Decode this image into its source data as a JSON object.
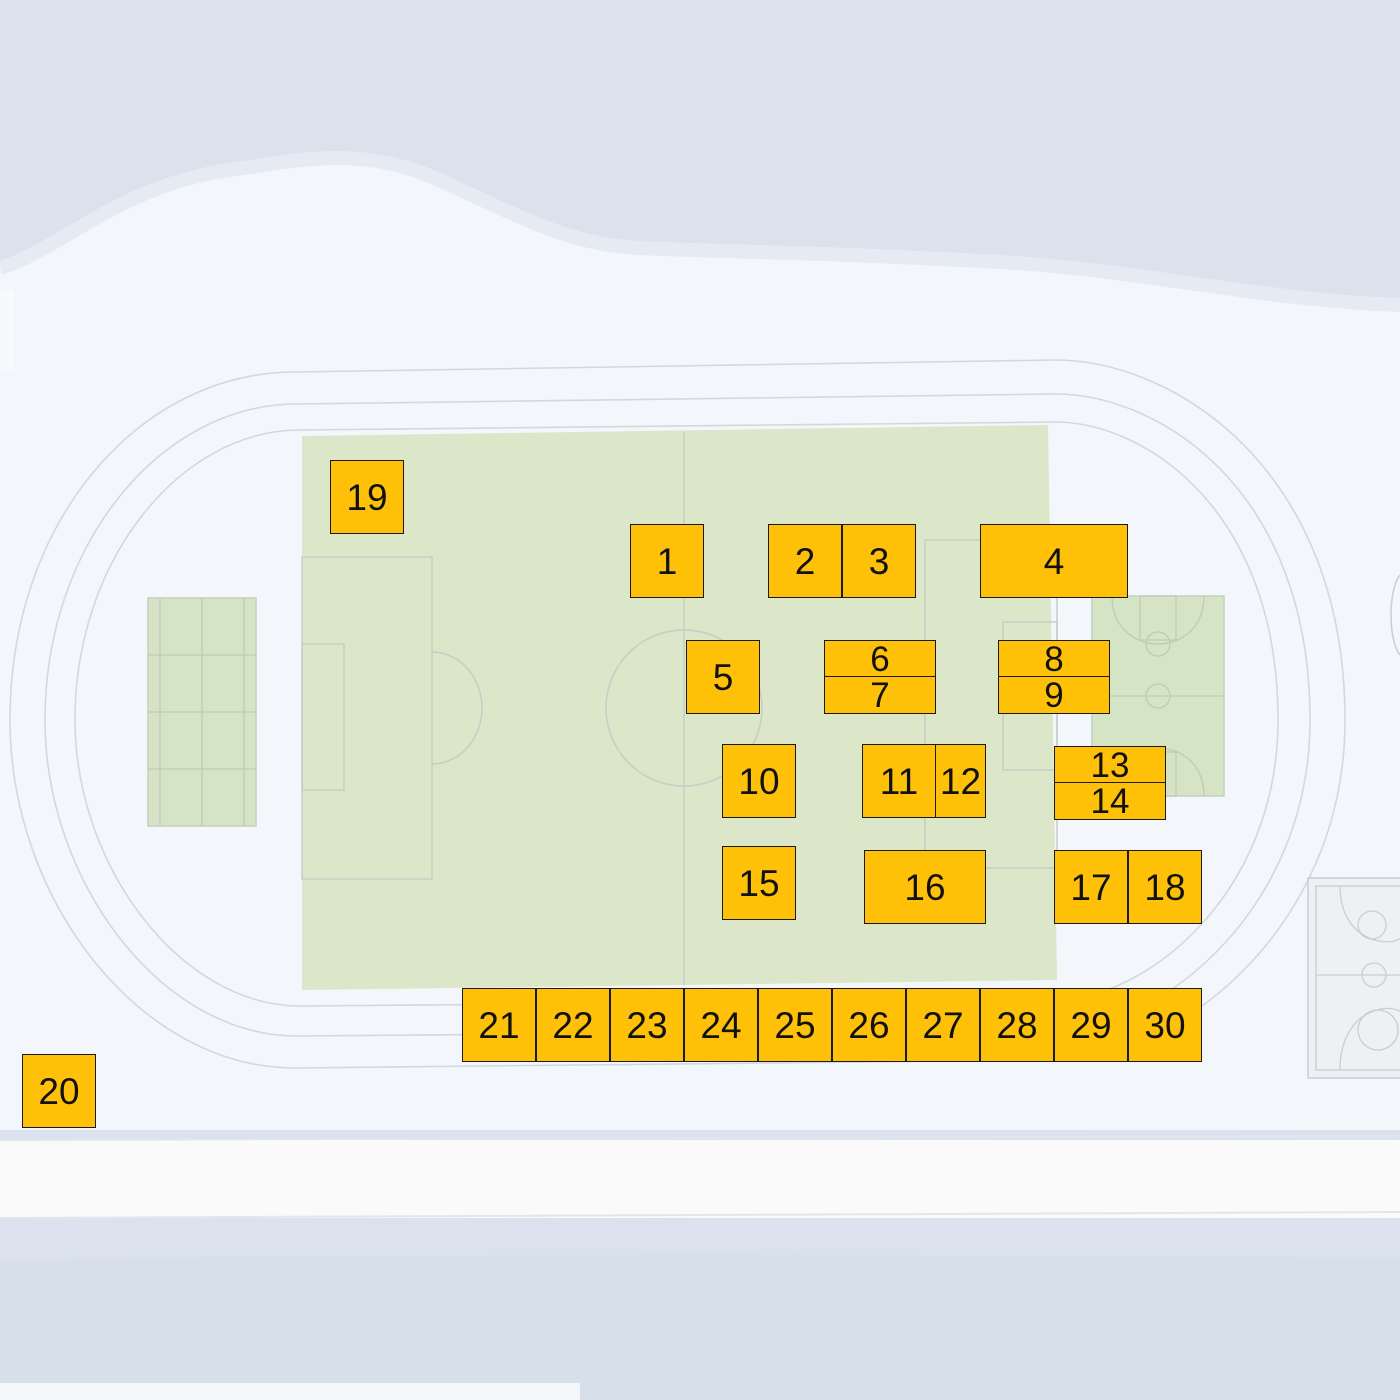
{
  "map": {
    "colors": {
      "water": "#dbe2ee",
      "land": "#f3f6fa",
      "field": "#dce6c9",
      "court": "#d6e4c6",
      "booth": "#ffc107",
      "booth_border": "#1a1a1a",
      "line": "#c9cfd5"
    },
    "booths": [
      {
        "id": "1",
        "label": "1"
      },
      {
        "id": "2",
        "label": "2"
      },
      {
        "id": "3",
        "label": "3"
      },
      {
        "id": "4",
        "label": "4"
      },
      {
        "id": "5",
        "label": "5"
      },
      {
        "id": "6",
        "label": "6"
      },
      {
        "id": "7",
        "label": "7"
      },
      {
        "id": "8",
        "label": "8"
      },
      {
        "id": "9",
        "label": "9"
      },
      {
        "id": "10",
        "label": "10"
      },
      {
        "id": "11",
        "label": "11"
      },
      {
        "id": "12",
        "label": "12"
      },
      {
        "id": "13",
        "label": "13"
      },
      {
        "id": "14",
        "label": "14"
      },
      {
        "id": "15",
        "label": "15"
      },
      {
        "id": "16",
        "label": "16"
      },
      {
        "id": "17",
        "label": "17"
      },
      {
        "id": "18",
        "label": "18"
      },
      {
        "id": "19",
        "label": "19"
      },
      {
        "id": "20",
        "label": "20"
      },
      {
        "id": "21",
        "label": "21"
      },
      {
        "id": "22",
        "label": "22"
      },
      {
        "id": "23",
        "label": "23"
      },
      {
        "id": "24",
        "label": "24"
      },
      {
        "id": "25",
        "label": "25"
      },
      {
        "id": "26",
        "label": "26"
      },
      {
        "id": "27",
        "label": "27"
      },
      {
        "id": "28",
        "label": "28"
      },
      {
        "id": "29",
        "label": "29"
      },
      {
        "id": "30",
        "label": "30"
      }
    ]
  }
}
